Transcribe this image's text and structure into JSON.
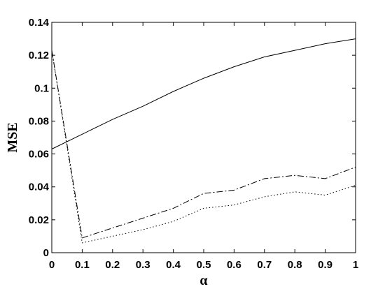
{
  "chart_data": {
    "type": "line",
    "title": "",
    "xlabel": "α",
    "ylabel": "MSE",
    "xlim": [
      0,
      1
    ],
    "ylim": [
      0,
      0.14
    ],
    "x_ticks": [
      0,
      0.1,
      0.2,
      0.3,
      0.4,
      0.5,
      0.6,
      0.7,
      0.8,
      0.9,
      1
    ],
    "x_tick_labels": [
      "0",
      "0.1",
      "0.2",
      "0.3",
      "0.4",
      "0.5",
      "0.6",
      "0.7",
      "0.8",
      "0.9",
      "1"
    ],
    "y_ticks": [
      0,
      0.02,
      0.04,
      0.06,
      0.08,
      0.1,
      0.12,
      0.14
    ],
    "y_tick_labels": [
      "0",
      "0.02",
      "0.04",
      "0.06",
      "0.08",
      "0.1",
      "0.12",
      "0.14"
    ],
    "grid": false,
    "legend": "none",
    "x": [
      0,
      0.1,
      0.2,
      0.3,
      0.4,
      0.5,
      0.6,
      0.7,
      0.8,
      0.9,
      1
    ],
    "series": [
      {
        "style": "solid",
        "color": "#000000",
        "values": [
          0.063,
          0.072,
          0.081,
          0.089,
          0.098,
          0.106,
          0.113,
          0.119,
          0.123,
          0.127,
          0.13
        ]
      },
      {
        "style": "dashdot",
        "color": "#000000",
        "values": [
          0.123,
          0.009,
          0.015,
          0.021,
          0.027,
          0.036,
          0.038,
          0.045,
          0.047,
          0.045,
          0.052
        ]
      },
      {
        "style": "dotted",
        "color": "#000000",
        "values": [
          0.123,
          0.006,
          0.01,
          0.014,
          0.019,
          0.027,
          0.029,
          0.034,
          0.037,
          0.035,
          0.041
        ]
      }
    ]
  }
}
